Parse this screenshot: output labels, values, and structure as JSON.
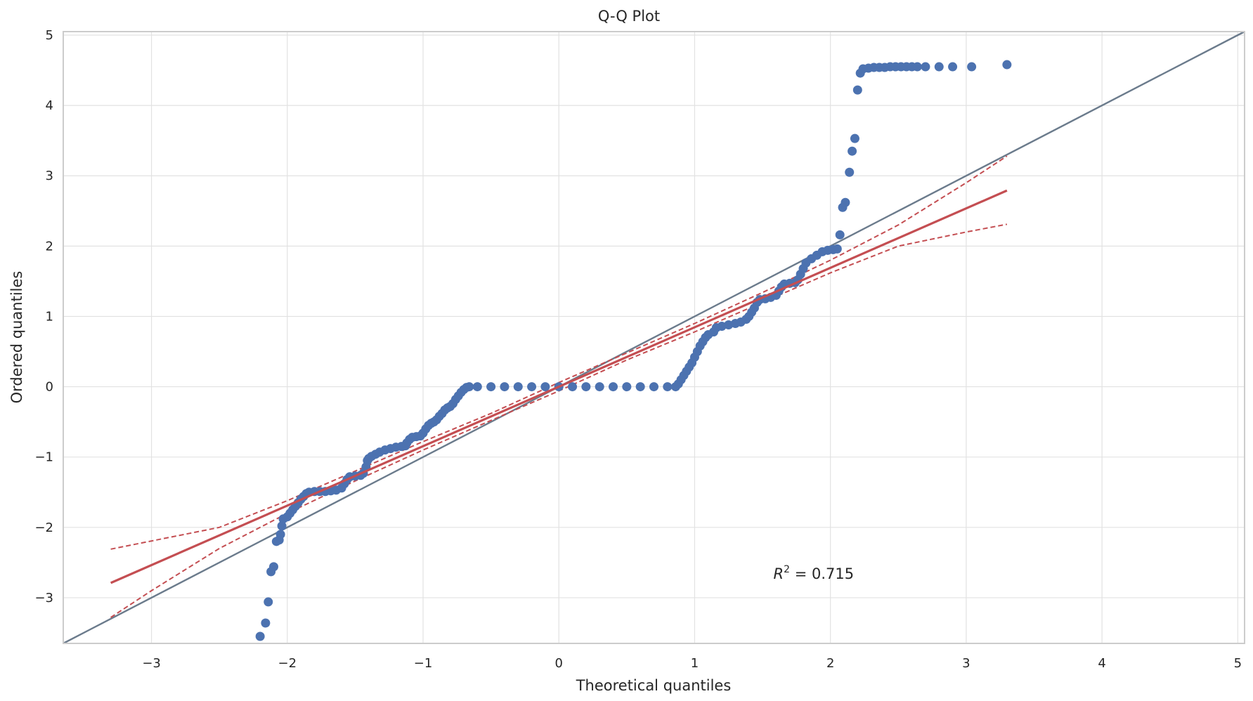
{
  "chart_data": {
    "type": "scatter",
    "title": "Q-Q Plot",
    "xlabel": "Theoretical quantiles",
    "ylabel": "Ordered quantiles",
    "xlim": [
      -3.65,
      5.05
    ],
    "ylim": [
      -3.65,
      5.05
    ],
    "xticks": [
      -3,
      -2,
      -1,
      0,
      1,
      2,
      3,
      4,
      5
    ],
    "yticks": [
      -3,
      -2,
      -1,
      0,
      1,
      2,
      3,
      4,
      5
    ],
    "xtick_labels": [
      "−3",
      "−2",
      "−1",
      "0",
      "1",
      "2",
      "3",
      "4",
      "5"
    ],
    "ytick_labels": [
      "−3",
      "−2",
      "−1",
      "0",
      "1",
      "2",
      "3",
      "4",
      "5"
    ],
    "grid": true,
    "annotation": {
      "r2_label": "R",
      "r2_sup": "2",
      "r2_rest": " = 0.715",
      "x": 1.58,
      "y": -2.73
    },
    "reference_line": {
      "slope": 1,
      "intercept": 0,
      "color": "#6b7b8c"
    },
    "fit_line": {
      "x": [
        -3.3,
        3.3
      ],
      "y": [
        -2.79,
        2.79
      ],
      "color": "#c44e52"
    },
    "confidence_band": {
      "color": "#c44e52",
      "upper": [
        [
          -3.3,
          -2.31
        ],
        [
          -2.5,
          -2.0
        ],
        [
          -2.0,
          -1.62
        ],
        [
          -1.5,
          -1.2
        ],
        [
          -1.0,
          -0.78
        ],
        [
          -0.5,
          -0.38
        ],
        [
          0,
          0.06
        ],
        [
          0.5,
          0.48
        ],
        [
          1.0,
          0.9
        ],
        [
          1.5,
          1.34
        ],
        [
          2.0,
          1.8
        ],
        [
          2.5,
          2.3
        ],
        [
          3.0,
          2.9
        ],
        [
          3.3,
          3.28
        ]
      ],
      "lower": [
        [
          -3.3,
          -3.28
        ],
        [
          -3.0,
          -2.9
        ],
        [
          -2.5,
          -2.3
        ],
        [
          -2.0,
          -1.8
        ],
        [
          -1.5,
          -1.34
        ],
        [
          -1.0,
          -0.9
        ],
        [
          -0.5,
          -0.48
        ],
        [
          0,
          -0.06
        ],
        [
          0.5,
          0.38
        ],
        [
          1.0,
          0.78
        ],
        [
          1.5,
          1.2
        ],
        [
          2.0,
          1.62
        ],
        [
          2.5,
          2.0
        ],
        [
          3.0,
          2.2
        ],
        [
          3.3,
          2.31
        ]
      ]
    },
    "point_color": "#4c72b0",
    "points": [
      [
        -2.2,
        -3.55
      ],
      [
        -2.16,
        -3.36
      ],
      [
        -2.14,
        -3.06
      ],
      [
        -2.12,
        -2.63
      ],
      [
        -2.1,
        -2.56
      ],
      [
        -2.08,
        -2.2
      ],
      [
        -2.06,
        -2.18
      ],
      [
        -2.05,
        -2.1
      ],
      [
        -2.04,
        -1.98
      ],
      [
        -2.03,
        -1.88
      ],
      [
        -2.0,
        -1.85
      ],
      [
        -1.98,
        -1.8
      ],
      [
        -1.96,
        -1.75
      ],
      [
        -1.94,
        -1.7
      ],
      [
        -1.92,
        -1.65
      ],
      [
        -1.9,
        -1.6
      ],
      [
        -1.88,
        -1.56
      ],
      [
        -1.86,
        -1.52
      ],
      [
        -1.84,
        -1.5
      ],
      [
        -1.8,
        -1.49
      ],
      [
        -1.76,
        -1.49
      ],
      [
        -1.72,
        -1.49
      ],
      [
        -1.68,
        -1.48
      ],
      [
        -1.64,
        -1.47
      ],
      [
        -1.6,
        -1.44
      ],
      [
        -1.58,
        -1.38
      ],
      [
        -1.56,
        -1.32
      ],
      [
        -1.54,
        -1.28
      ],
      [
        -1.5,
        -1.27
      ],
      [
        -1.46,
        -1.26
      ],
      [
        -1.44,
        -1.23
      ],
      [
        -1.42,
        -1.14
      ],
      [
        -1.41,
        -1.05
      ],
      [
        -1.4,
        -1.02
      ],
      [
        -1.38,
        -0.99
      ],
      [
        -1.35,
        -0.96
      ],
      [
        -1.32,
        -0.93
      ],
      [
        -1.28,
        -0.9
      ],
      [
        -1.24,
        -0.88
      ],
      [
        -1.2,
        -0.86
      ],
      [
        -1.16,
        -0.85
      ],
      [
        -1.13,
        -0.84
      ],
      [
        -1.12,
        -0.8
      ],
      [
        -1.1,
        -0.75
      ],
      [
        -1.08,
        -0.72
      ],
      [
        -1.05,
        -0.71
      ],
      [
        -1.02,
        -0.7
      ],
      [
        -1.0,
        -0.66
      ],
      [
        -0.98,
        -0.6
      ],
      [
        -0.96,
        -0.55
      ],
      [
        -0.94,
        -0.52
      ],
      [
        -0.92,
        -0.5
      ],
      [
        -0.9,
        -0.47
      ],
      [
        -0.88,
        -0.42
      ],
      [
        -0.86,
        -0.38
      ],
      [
        -0.84,
        -0.33
      ],
      [
        -0.82,
        -0.3
      ],
      [
        -0.8,
        -0.28
      ],
      [
        -0.78,
        -0.24
      ],
      [
        -0.76,
        -0.18
      ],
      [
        -0.74,
        -0.13
      ],
      [
        -0.72,
        -0.08
      ],
      [
        -0.7,
        -0.04
      ],
      [
        -0.68,
        -0.01
      ],
      [
        -0.66,
        0.0
      ],
      [
        -0.6,
        0.0
      ],
      [
        -0.5,
        0.0
      ],
      [
        -0.4,
        0.0
      ],
      [
        -0.3,
        0.0
      ],
      [
        -0.2,
        0.0
      ],
      [
        -0.1,
        0.0
      ],
      [
        0.0,
        0.0
      ],
      [
        0.1,
        0.0
      ],
      [
        0.2,
        0.0
      ],
      [
        0.3,
        0.0
      ],
      [
        0.4,
        0.0
      ],
      [
        0.5,
        0.0
      ],
      [
        0.6,
        0.0
      ],
      [
        0.7,
        0.0
      ],
      [
        0.8,
        0.0
      ],
      [
        0.86,
        0.0
      ],
      [
        0.88,
        0.04
      ],
      [
        0.9,
        0.1
      ],
      [
        0.92,
        0.16
      ],
      [
        0.94,
        0.22
      ],
      [
        0.96,
        0.28
      ],
      [
        0.98,
        0.34
      ],
      [
        1.0,
        0.42
      ],
      [
        1.02,
        0.5
      ],
      [
        1.04,
        0.58
      ],
      [
        1.06,
        0.64
      ],
      [
        1.08,
        0.7
      ],
      [
        1.1,
        0.74
      ],
      [
        1.14,
        0.78
      ],
      [
        1.16,
        0.84
      ],
      [
        1.2,
        0.86
      ],
      [
        1.25,
        0.88
      ],
      [
        1.3,
        0.9
      ],
      [
        1.34,
        0.92
      ],
      [
        1.38,
        0.96
      ],
      [
        1.4,
        1.0
      ],
      [
        1.42,
        1.06
      ],
      [
        1.44,
        1.12
      ],
      [
        1.46,
        1.2
      ],
      [
        1.48,
        1.24
      ],
      [
        1.52,
        1.25
      ],
      [
        1.56,
        1.27
      ],
      [
        1.6,
        1.3
      ],
      [
        1.62,
        1.36
      ],
      [
        1.64,
        1.42
      ],
      [
        1.66,
        1.46
      ],
      [
        1.7,
        1.47
      ],
      [
        1.74,
        1.48
      ],
      [
        1.76,
        1.52
      ],
      [
        1.78,
        1.6
      ],
      [
        1.8,
        1.68
      ],
      [
        1.82,
        1.76
      ],
      [
        1.86,
        1.82
      ],
      [
        1.9,
        1.87
      ],
      [
        1.94,
        1.92
      ],
      [
        1.98,
        1.94
      ],
      [
        2.02,
        1.95
      ],
      [
        2.05,
        1.96
      ],
      [
        2.07,
        2.16
      ],
      [
        2.09,
        2.55
      ],
      [
        2.11,
        2.62
      ],
      [
        2.14,
        3.05
      ],
      [
        2.16,
        3.35
      ],
      [
        2.18,
        3.53
      ],
      [
        2.2,
        4.22
      ],
      [
        2.22,
        4.46
      ],
      [
        2.24,
        4.52
      ],
      [
        2.28,
        4.53
      ],
      [
        2.32,
        4.54
      ],
      [
        2.36,
        4.54
      ],
      [
        2.4,
        4.54
      ],
      [
        2.44,
        4.55
      ],
      [
        2.48,
        4.55
      ],
      [
        2.52,
        4.55
      ],
      [
        2.56,
        4.55
      ],
      [
        2.6,
        4.55
      ],
      [
        2.64,
        4.55
      ],
      [
        2.7,
        4.55
      ],
      [
        2.8,
        4.55
      ],
      [
        2.9,
        4.55
      ],
      [
        3.04,
        4.55
      ],
      [
        3.3,
        4.58
      ]
    ]
  }
}
